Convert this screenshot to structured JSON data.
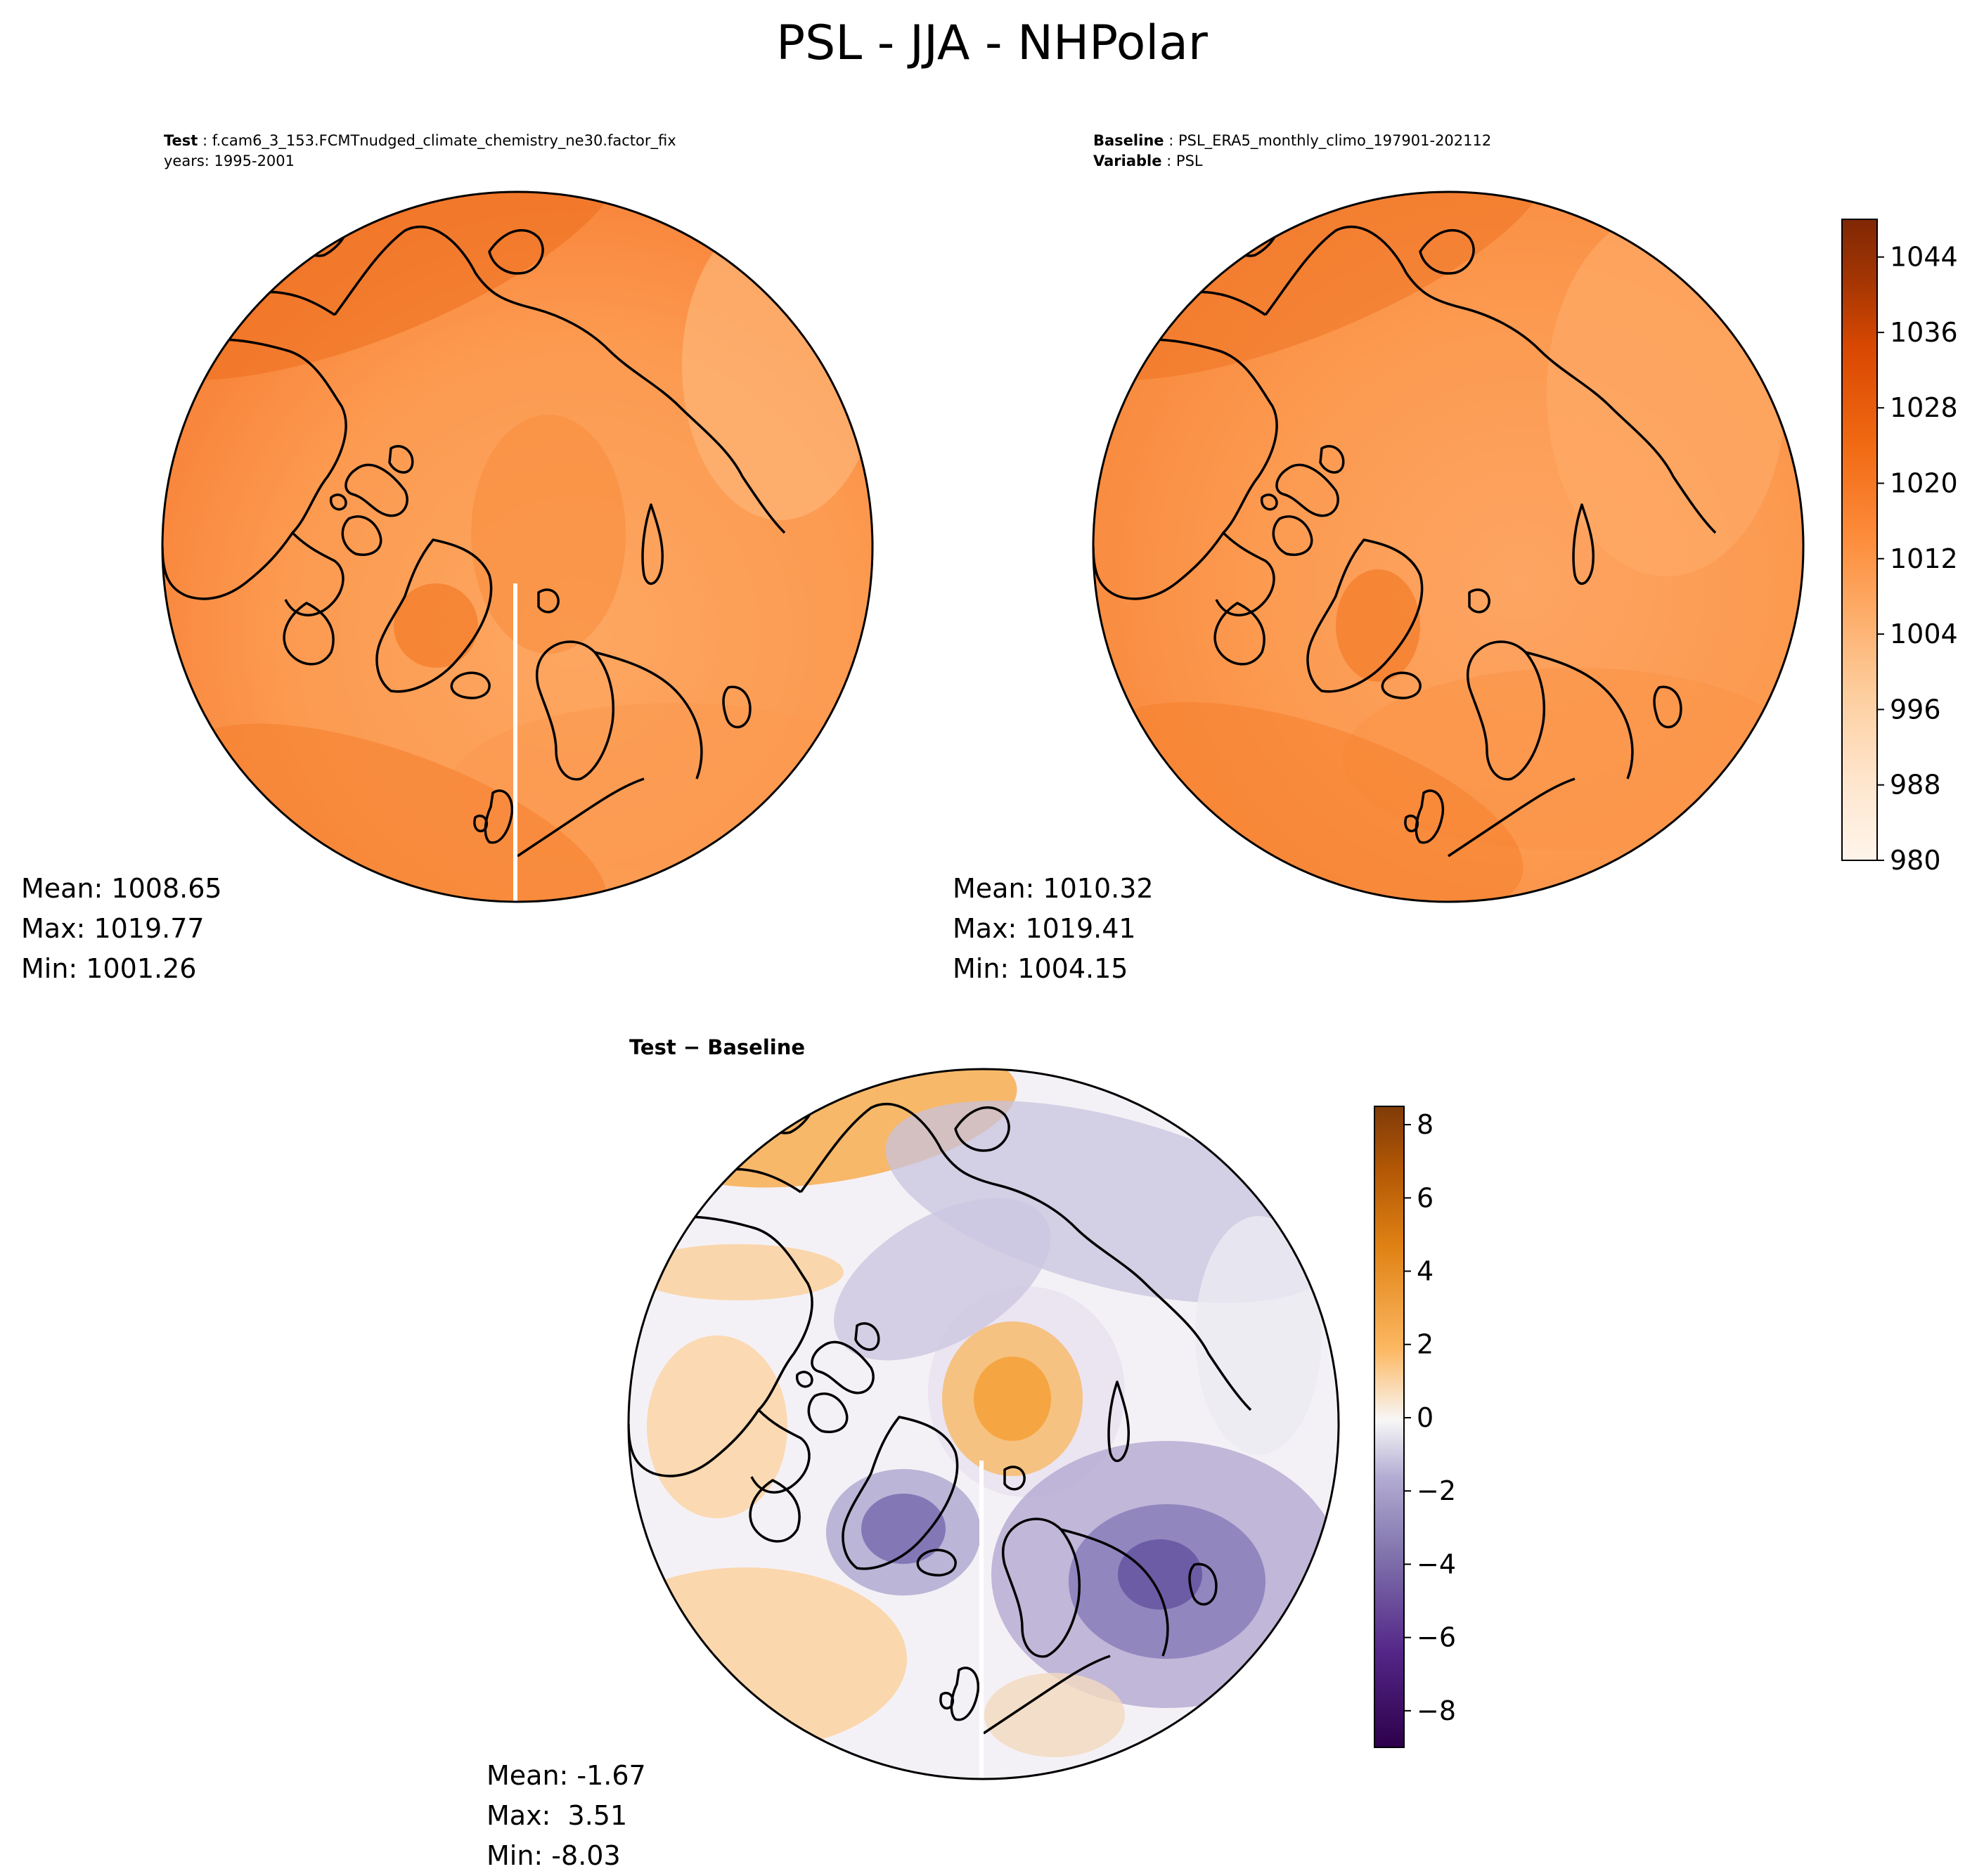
{
  "title": "PSL - JJA - NHPolar",
  "panels": {
    "test": {
      "header_label": "Test",
      "header_value": "f.cam6_3_153.FCMTnudged_climate_chemistry_ne30.factor_fix",
      "years_line": "years: 1995-2001",
      "mean": "Mean: 1008.65",
      "max": "Max: 1019.77",
      "min": "Min: 1001.26"
    },
    "baseline": {
      "header_label": "Baseline",
      "header_value": "PSL_ERA5_monthly_climo_197901-202112",
      "variable_label": "Variable",
      "variable_value": "PSL",
      "mean": "Mean: 1010.32",
      "max": "Max: 1019.41",
      "min": "Min: 1004.15"
    },
    "diff": {
      "title": "Test − Baseline",
      "mean": "Mean: -1.67",
      "max": "Max:  3.51",
      "min": "Min: -8.03"
    }
  },
  "colorbars": {
    "psl": {
      "ticks": [
        "980",
        "988",
        "996",
        "1004",
        "1012",
        "1020",
        "1028",
        "1036",
        "1044"
      ],
      "range": [
        980,
        1048
      ],
      "colormap": "Oranges"
    },
    "diff": {
      "ticks": [
        "−8",
        "−6",
        "−4",
        "−2",
        "0",
        "2",
        "4",
        "6",
        "8"
      ],
      "range": [
        -9,
        8.5
      ],
      "colormap": "PuOr_r",
      "colors": {
        "neg": "#2d004b",
        "zero": "#f7f7f7",
        "pos": "#7f3b08"
      }
    }
  },
  "map_colors": {
    "low": "#fdae6b",
    "mid": "#fd8d3c",
    "high": "#e6550d",
    "diff_pos": "#f9a94a",
    "diff_neg": "#6f5da8"
  }
}
